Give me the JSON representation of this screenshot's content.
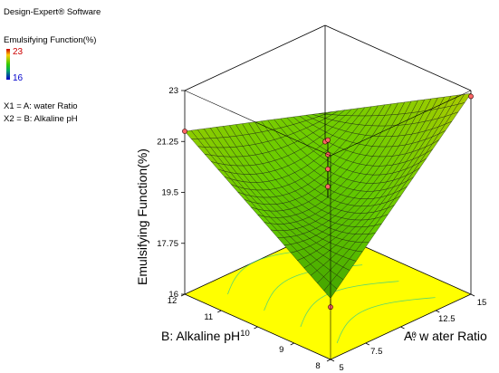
{
  "software": "Design-Expert® Software",
  "legend": {
    "title": "Emulsifying Function(%)",
    "high": "23",
    "low": "16",
    "high_color": "#cc0000",
    "low_color": "#0000cc"
  },
  "factors": {
    "x1": "X1 = A: water Ratio",
    "x2": "X2 = B: Alkaline pH"
  },
  "chart_data": {
    "type": "surface",
    "zlabel": "Emulsifying Function(%)",
    "xlabel": "A: w ater Ratio",
    "ylabel": "B: Alkaline pH",
    "x_ticks": [
      "5",
      "7.5",
      "10",
      "12.5",
      "15"
    ],
    "y_ticks": [
      "8",
      "9",
      "10",
      "11",
      "12"
    ],
    "z_ticks": [
      "16",
      "17.75",
      "19.5",
      "21.25",
      "23"
    ],
    "xlim": [
      5,
      15
    ],
    "ylim": [
      8,
      12
    ],
    "zlim": [
      16,
      23
    ],
    "surface_corners": [
      {
        "a": 15,
        "b": 8,
        "value": 22.9
      },
      {
        "a": 5,
        "b": 12,
        "value": 21.6
      },
      {
        "a": 5,
        "b": 8,
        "value": 18.1
      },
      {
        "a": 15,
        "b": 12,
        "value": 20.0
      }
    ],
    "design_points": [
      {
        "a": 15,
        "b": 8,
        "value": 22.8
      },
      {
        "a": 5,
        "b": 12,
        "value": 21.6
      },
      {
        "a": 5,
        "b": 8,
        "value": 17.8
      },
      {
        "a": 15,
        "b": 12,
        "value": 19.0
      },
      {
        "a": 10,
        "b": 10,
        "value": 21.3
      },
      {
        "a": 10,
        "b": 10,
        "value": 20.8
      },
      {
        "a": 10,
        "b": 10,
        "value": 20.3
      },
      {
        "a": 10,
        "b": 10,
        "value": 19.7
      }
    ],
    "floor_color": "#ffff00",
    "surface_colors": [
      "#1f7a00",
      "#66cc00",
      "#aacc00"
    ]
  }
}
